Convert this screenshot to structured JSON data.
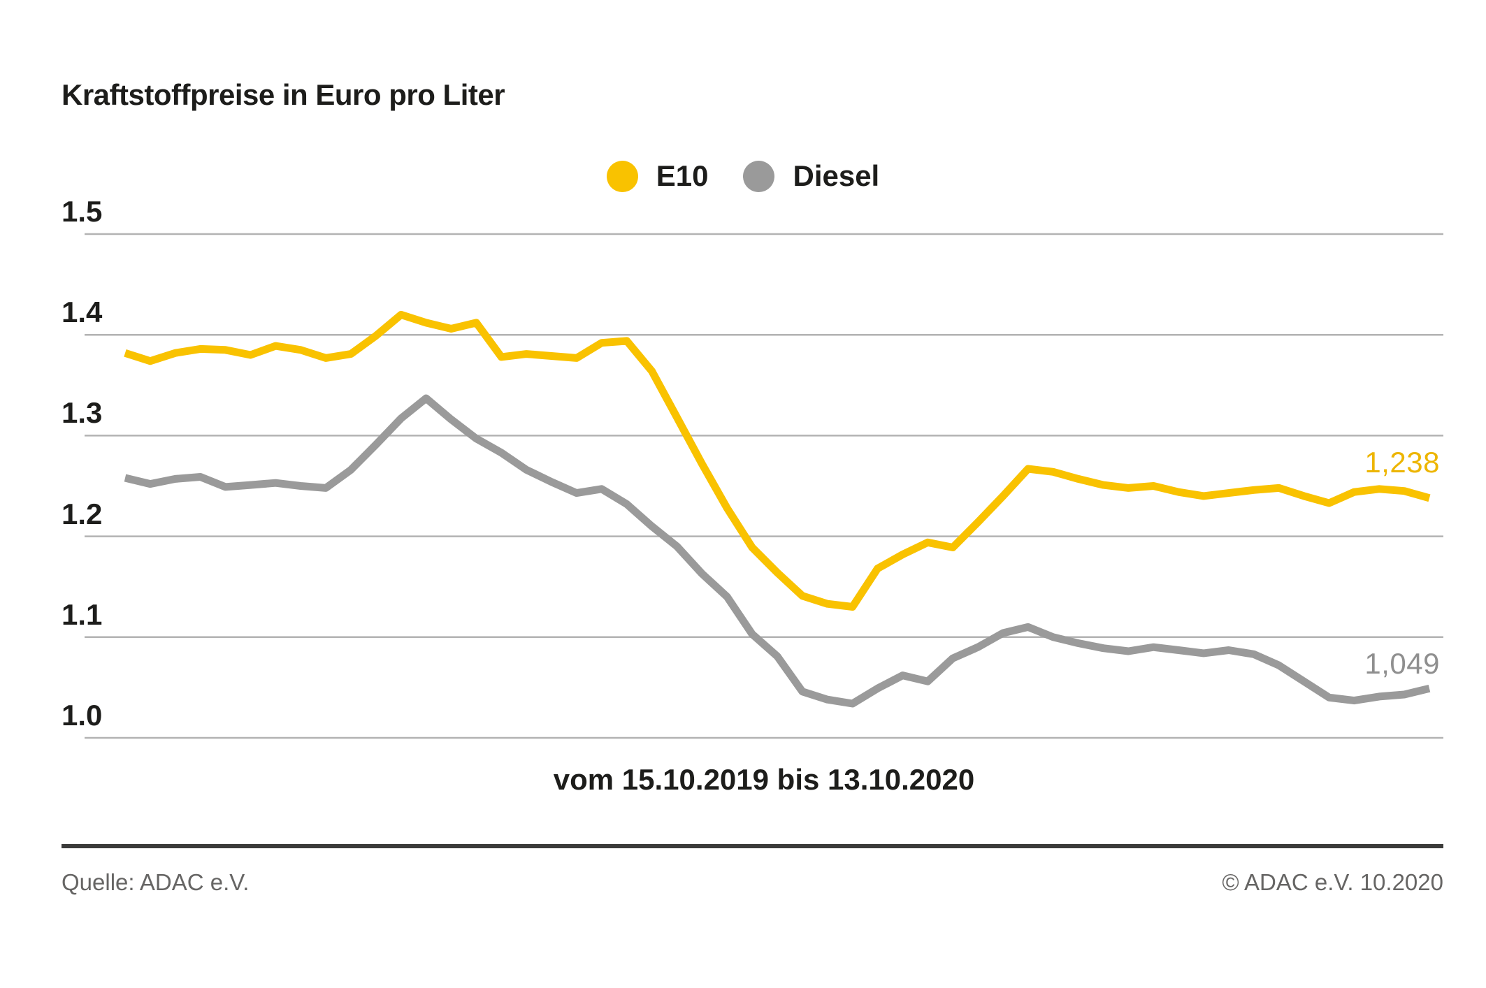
{
  "title": "Kraftstoffpreise in Euro pro Liter",
  "legend": {
    "items": [
      {
        "label": "E10",
        "color": "#f9c200"
      },
      {
        "label": "Diesel",
        "color": "#9a9a9a"
      }
    ]
  },
  "chart_data": {
    "type": "line",
    "title": "Kraftstoffpreise in Euro pro Liter",
    "ylabel": "Euro pro Liter",
    "x_caption": "vom 15.10.2019 bis 13.10.2020",
    "x_start": "15.10.2019",
    "x_end": "13.10.2020",
    "x_interval": "weekly",
    "ylim": [
      1.0,
      1.5
    ],
    "yticks": [
      "1.5",
      "1.4",
      "1.3",
      "1.2",
      "1.1",
      "1.0"
    ],
    "grid": "horizontal",
    "grid_color": "#b3b3b3",
    "legend_position": "top-center",
    "series": [
      {
        "name": "E10",
        "color": "#f9c200",
        "end_label": "1,238",
        "end_value": 1.238,
        "values": [
          1.382,
          1.374,
          1.382,
          1.386,
          1.385,
          1.38,
          1.389,
          1.385,
          1.377,
          1.381,
          1.399,
          1.42,
          1.412,
          1.406,
          1.412,
          1.378,
          1.381,
          1.379,
          1.377,
          1.392,
          1.394,
          1.364,
          1.318,
          1.272,
          1.228,
          1.189,
          1.164,
          1.141,
          1.133,
          1.13,
          1.168,
          1.182,
          1.194,
          1.189,
          1.214,
          1.24,
          1.267,
          1.264,
          1.257,
          1.251,
          1.248,
          1.25,
          1.244,
          1.24,
          1.243,
          1.246,
          1.248,
          1.24,
          1.233,
          1.244,
          1.247,
          1.245,
          1.238
        ]
      },
      {
        "name": "Diesel",
        "color": "#9a9a9a",
        "end_label": "1,049",
        "end_value": 1.049,
        "values": [
          1.258,
          1.252,
          1.257,
          1.259,
          1.249,
          1.251,
          1.253,
          1.25,
          1.248,
          1.266,
          1.291,
          1.317,
          1.337,
          1.316,
          1.297,
          1.283,
          1.266,
          1.254,
          1.243,
          1.247,
          1.232,
          1.21,
          1.19,
          1.163,
          1.14,
          1.103,
          1.081,
          1.046,
          1.038,
          1.034,
          1.049,
          1.062,
          1.056,
          1.079,
          1.09,
          1.104,
          1.11,
          1.1,
          1.094,
          1.089,
          1.086,
          1.09,
          1.087,
          1.084,
          1.087,
          1.083,
          1.072,
          1.056,
          1.04,
          1.037,
          1.041,
          1.043,
          1.049
        ]
      }
    ]
  },
  "footer": {
    "source": "Quelle: ADAC e.V.",
    "copyright": "© ADAC e.V. 10.2020"
  }
}
